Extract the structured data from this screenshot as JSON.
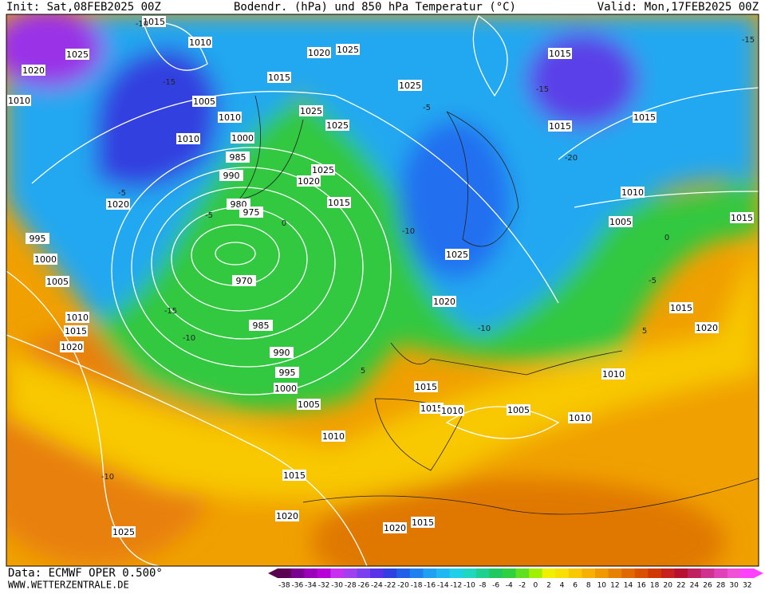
{
  "header": {
    "init": "Init: Sat,08FEB2025 00Z",
    "title": "Bodendr. (hPa) und 850 hPa Temperatur (°C)",
    "valid": "Valid: Mon,17FEB2025 00Z"
  },
  "footer": {
    "source": "Data: ECMWF OPER 0.500°",
    "site": "WWW.WETTERZENTRALE.DE"
  },
  "isobar_labels": [
    "1015",
    "1010",
    "1025",
    "1020",
    "1010",
    "1005",
    "1010",
    "1010",
    "1000",
    "985",
    "990",
    "980",
    "975",
    "970",
    "985",
    "990",
    "995",
    "1000",
    "1005",
    "1010",
    "1015",
    "1020",
    "1025",
    "1020",
    "995",
    "1000",
    "1005",
    "1010",
    "1015",
    "1020",
    "1020",
    "1025",
    "1015",
    "1025",
    "1025",
    "1025",
    "1020",
    "1015",
    "1025",
    "1015",
    "1015",
    "1015",
    "1010",
    "1005",
    "1015",
    "1025",
    "1020",
    "1015",
    "1015",
    "1010",
    "1005",
    "1010",
    "1010",
    "1015",
    "1020",
    "1020",
    "1015"
  ],
  "isotherm_labels": [
    "-15",
    "-10",
    "-5",
    "-15",
    "-10",
    "-5",
    "0",
    "5",
    "-10",
    "-5",
    "-10",
    "-15",
    "-20",
    "-15",
    "0",
    "-5",
    "5",
    "-10"
  ],
  "colorbar": {
    "labels": [
      -38,
      -36,
      -34,
      -32,
      -30,
      -28,
      -26,
      -24,
      -22,
      -20,
      -18,
      -16,
      -14,
      -12,
      -10,
      -8,
      -6,
      -4,
      -2,
      0,
      2,
      4,
      6,
      8,
      10,
      12,
      14,
      16,
      18,
      20,
      22,
      24,
      26,
      28,
      30,
      32
    ],
    "colors": [
      "#5a0050",
      "#7a0090",
      "#9a00b8",
      "#b800d8",
      "#c830f0",
      "#a040f0",
      "#7a40f0",
      "#5a30e8",
      "#3040e0",
      "#2060e8",
      "#2080f0",
      "#20a0f0",
      "#20b8f0",
      "#20d0e8",
      "#20d8c0",
      "#20d090",
      "#20c860",
      "#30d040",
      "#60e020",
      "#a0f000",
      "#f0f000",
      "#f8e000",
      "#f8c800",
      "#f8b000",
      "#f09800",
      "#e88000",
      "#e06800",
      "#d85000",
      "#d03800",
      "#c82020",
      "#b81030",
      "#c02060",
      "#d03090",
      "#e040b8",
      "#f050d8",
      "#ff40ff"
    ]
  }
}
